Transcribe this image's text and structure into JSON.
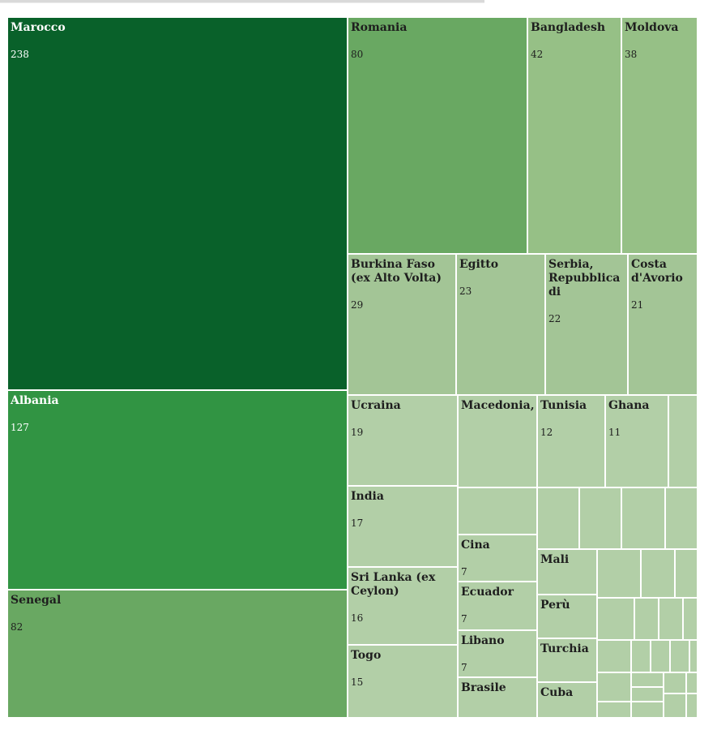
{
  "chart_data": {
    "type": "treemap",
    "title": "",
    "colors": {
      "darkest": "#09612a",
      "dark": "#319443",
      "medium": "#69a862",
      "light": "#96c086",
      "lighter": "#a3c596",
      "lightest": "#b2cfa7",
      "border": "#ffffff"
    },
    "items": [
      {
        "name": "Marocco",
        "label": "Marocco",
        "value": 238,
        "value_label": "238"
      },
      {
        "name": "Albania",
        "label": "Albania",
        "value": 127,
        "value_label": "127"
      },
      {
        "name": "Senegal",
        "label": "Senegal",
        "value": 82,
        "value_label": "82"
      },
      {
        "name": "Romania",
        "label": "Romania",
        "value": 80,
        "value_label": "80"
      },
      {
        "name": "Bangladesh",
        "label": "Bangladesh",
        "value": 42,
        "value_label": "42"
      },
      {
        "name": "Moldova",
        "label": "Moldova",
        "value": 38,
        "value_label": "38"
      },
      {
        "name": "Burkina Faso (ex Alto Volta)",
        "label": "Burkina Faso\n(ex Alto Volta)",
        "value": 29,
        "value_label": "29"
      },
      {
        "name": "Egitto",
        "label": "Egitto",
        "value": 23,
        "value_label": "23"
      },
      {
        "name": "Serbia, Repubblica di",
        "label": "Serbia,\nRepubblica\ndi",
        "value": 22,
        "value_label": "22"
      },
      {
        "name": "Costa d'Avorio",
        "label": "Costa\nd'Avorio",
        "value": 21,
        "value_label": "21"
      },
      {
        "name": "Ucraina",
        "label": "Ucraina",
        "value": 19,
        "value_label": "19"
      },
      {
        "name": "Macedonia,",
        "label": "Macedonia,",
        "value": null,
        "value_label": ""
      },
      {
        "name": "Tunisia",
        "label": "Tunisia",
        "value": 12,
        "value_label": "12"
      },
      {
        "name": "Ghana",
        "label": "Ghana",
        "value": 11,
        "value_label": "11"
      },
      {
        "name": "India",
        "label": "India",
        "value": 17,
        "value_label": "17"
      },
      {
        "name": "Sri Lanka (ex Ceylon)",
        "label": "Sri Lanka (ex\nCeylon)",
        "value": 16,
        "value_label": "16"
      },
      {
        "name": "Togo",
        "label": "Togo",
        "value": 15,
        "value_label": "15"
      },
      {
        "name": "Cina",
        "label": "Cina",
        "value": 7,
        "value_label": "7"
      },
      {
        "name": "Ecuador",
        "label": "Ecuador",
        "value": 7,
        "value_label": "7"
      },
      {
        "name": "Libano",
        "label": "Libano",
        "value": 7,
        "value_label": "7"
      },
      {
        "name": "Brasile",
        "label": "Brasile",
        "value": null,
        "value_label": ""
      },
      {
        "name": "Mali",
        "label": "Mali",
        "value": null,
        "value_label": ""
      },
      {
        "name": "Perù",
        "label": "Perù",
        "value": null,
        "value_label": ""
      },
      {
        "name": "Turchia",
        "label": "Turchia",
        "value": null,
        "value_label": ""
      },
      {
        "name": "Cuba",
        "label": "Cuba",
        "value": null,
        "value_label": ""
      }
    ]
  }
}
